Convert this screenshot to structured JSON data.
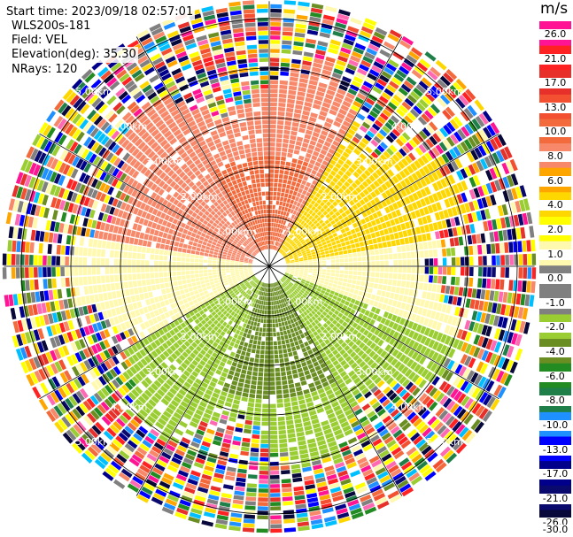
{
  "info": {
    "start_time": "Start time: 2023/09/18 02:57:01",
    "site": "WLS200s-181",
    "field": "Field: VEL",
    "elevation": "Elevation(deg): 35.30",
    "nrays": "NRays: 120"
  },
  "chart_data": {
    "type": "ppi-polar-heatmap",
    "title": "",
    "field": "VEL",
    "units": "m/s",
    "n_rays": 120,
    "range_rings_km": [
      1.0,
      2.0,
      3.0,
      4.0,
      5.0
    ],
    "ring_labels": [
      "1.00km",
      "2.00km",
      "3.00km",
      "4.00km",
      "5.00km"
    ],
    "spokes_deg": [
      0,
      30,
      60,
      90,
      120,
      150,
      180,
      210,
      240,
      270,
      300,
      330
    ],
    "max_range_km": 5.35,
    "grid": true,
    "colorbar": {
      "label": "m/s",
      "ticks": [
        "26.0",
        "21.0",
        "17.0",
        "13.0",
        "10.0",
        "8.0",
        "6.0",
        "4.0",
        "2.0",
        "1.0",
        "0.0",
        "-1.0",
        "-2.0",
        "-4.0",
        "-6.0",
        "-8.0",
        "-10.0",
        "-13.0",
        "-17.0",
        "-21.0",
        "-26.0",
        "-30.0"
      ],
      "colors": [
        "#ff1493",
        "#ff2222",
        "#e8302a",
        "#f25030",
        "#f36a3c",
        "#f7886a",
        "#ffa500",
        "#ffd700",
        "#ffff00",
        "#fff9b0",
        "#808080",
        "#808080",
        "#9acd32",
        "#6b8e23",
        "#228b22",
        "#1e8048",
        "#1e90ff",
        "#0000ff",
        "#00008b",
        "#0a0a6e",
        "#08083a"
      ]
    },
    "velocity_pattern": {
      "clear_air_range_km": [
        0.35,
        3.7
      ],
      "noise_start_km": [
        2.6,
        4.3
      ],
      "dominant_sectors": [
        {
          "from_deg": 220,
          "to_deg": 70,
          "value_mps": 6.0
        },
        {
          "from_deg": 330,
          "to_deg": 20,
          "value_mps": 8.0
        },
        {
          "from_deg": 30,
          "to_deg": 80,
          "value_mps": 2.0
        },
        {
          "from_deg": 80,
          "to_deg": 110,
          "value_mps": 0.0
        },
        {
          "from_deg": 110,
          "to_deg": 240,
          "value_mps": -4.0
        },
        {
          "from_deg": 150,
          "to_deg": 200,
          "value_mps": -6.0
        },
        {
          "from_deg": 240,
          "to_deg": 280,
          "value_mps": 0.0
        }
      ]
    }
  }
}
